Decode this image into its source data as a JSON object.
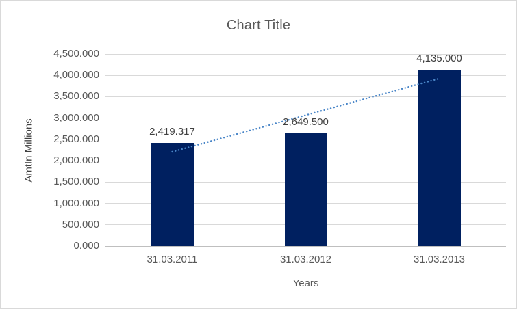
{
  "title": "Chart Title",
  "colors": {
    "bar": "#002060",
    "trendline": "#4a86c8",
    "gridline": "#d9d9d9",
    "axis_line": "#bfbfbf",
    "title_text": "#595959",
    "tick_text": "#595959",
    "data_label_text": "#404040",
    "border": "#d9d9d9",
    "background": "#ffffff"
  },
  "chart_data": {
    "type": "bar",
    "title": "Chart Title",
    "categories": [
      "31.03.2011",
      "31.03.2012",
      "31.03.2013"
    ],
    "values": [
      2419.317,
      2649.5,
      4135.0
    ],
    "data_labels": [
      "2,419.317",
      "2,649.500",
      "4,135.000"
    ],
    "xlabel": "Years",
    "ylabel": "AmtIn Millions",
    "ylim": [
      0,
      4500
    ],
    "ytick_step": 500,
    "ytick_labels": [
      "0.000",
      "500.000",
      "1,000.000",
      "1,500.000",
      "2,000.000",
      "2,500.000",
      "3,000.000",
      "3,500.000",
      "4,000.000",
      "4,500.000"
    ],
    "grid": true,
    "legend": false,
    "trendline": {
      "type": "linear",
      "style": "dotted"
    }
  }
}
